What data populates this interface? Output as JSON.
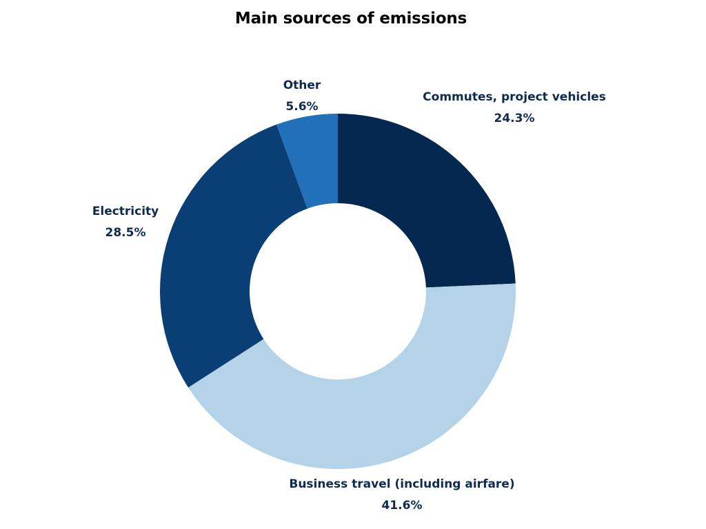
{
  "chart_data": {
    "type": "pie",
    "variant": "donut",
    "title": "Main sources of emissions",
    "slices": [
      {
        "label": "Commutes, project vehicles",
        "value": 24.3,
        "value_label": "24.3%",
        "color": "#04284f"
      },
      {
        "label": "Business travel (including airfare)",
        "value": 41.6,
        "value_label": "41.6%",
        "color": "#b4d3e8"
      },
      {
        "label": "Electricity",
        "value": 28.5,
        "value_label": "28.5%",
        "color": "#0a3f76"
      },
      {
        "label": "Other",
        "value": 5.6,
        "value_label": "5.6%",
        "color": "#2270b9"
      }
    ],
    "start_position": "top",
    "direction": "clockwise",
    "labels_placement": "outside"
  }
}
